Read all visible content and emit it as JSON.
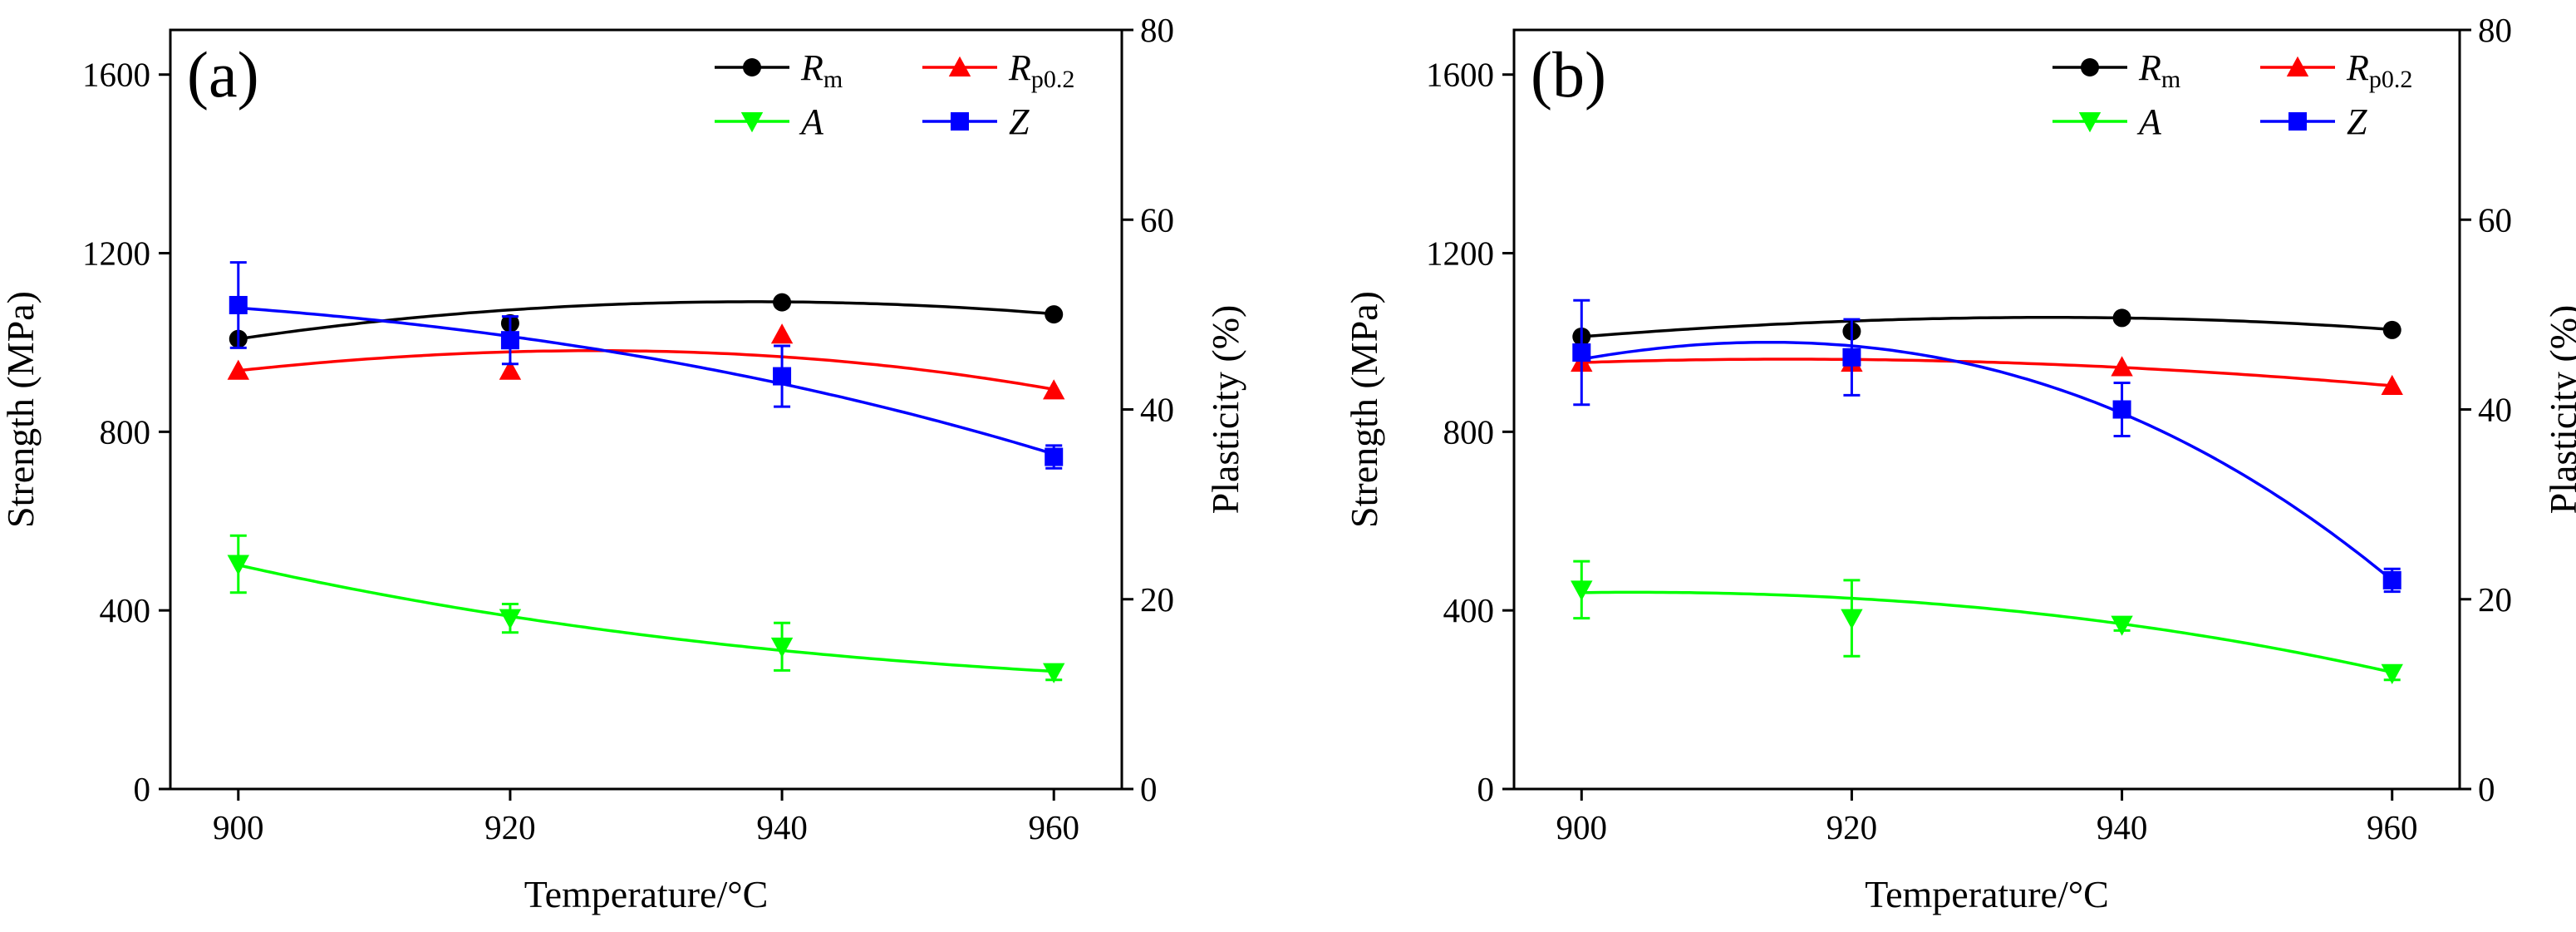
{
  "chart_data": [
    {
      "type": "line",
      "panel_label": "(a)",
      "xlabel": "Temperature/°C",
      "ylabel_left": "Strength (MPa)",
      "ylabel_right": "Plasticity (%)",
      "x": [
        900,
        920,
        940,
        960
      ],
      "x_ticks": [
        "900",
        "920",
        "940",
        "960"
      ],
      "xlim": [
        895,
        965
      ],
      "ylim_left": [
        0,
        1700
      ],
      "ylim_right": [
        0,
        80
      ],
      "y_ticks_left": [
        "0",
        "400",
        "800",
        "1200",
        "1600"
      ],
      "y_ticks_right": [
        "0",
        "20",
        "40",
        "60",
        "80"
      ],
      "legend_position": "top-right",
      "series": [
        {
          "key": "Rm",
          "name": "R",
          "sub": "m",
          "axis": "left",
          "color": "#000000",
          "marker": "circle",
          "values": [
            1008,
            1043,
            1090,
            1063
          ],
          "errors": [
            0,
            0,
            0,
            0
          ],
          "fit": [
            1008,
            1073,
            1091,
            1064
          ]
        },
        {
          "key": "Rp",
          "name": "R",
          "sub": "p0.2",
          "axis": "left",
          "color": "#ff0000",
          "marker": "triangle-up",
          "values": [
            937,
            937,
            1018,
            893
          ],
          "errors": [
            0,
            0,
            0,
            0
          ],
          "fit": [
            937,
            979,
            968,
            895
          ]
        },
        {
          "key": "A",
          "name": "A",
          "sub": "",
          "axis": "right",
          "color": "#00ff00",
          "marker": "triangle-down",
          "values": [
            23.7,
            18,
            15,
            12.3
          ],
          "errors": [
            3,
            1.5,
            2.5,
            0.8
          ],
          "fit": [
            23.6,
            18.2,
            14.6,
            12.4
          ]
        },
        {
          "key": "Z",
          "name": "Z",
          "sub": "",
          "axis": "right",
          "color": "#0000ff",
          "marker": "square",
          "values": [
            51,
            47.3,
            43.5,
            35
          ],
          "errors": [
            4.5,
            2.5,
            3.2,
            1.2
          ],
          "fit": [
            50.7,
            47.7,
            42.7,
            35.3
          ]
        }
      ]
    },
    {
      "type": "line",
      "panel_label": "(b)",
      "xlabel": "Temperature/°C",
      "ylabel_left": "Strength (MPa)",
      "ylabel_right": "Plasticity (%)",
      "x": [
        900,
        920,
        940,
        960
      ],
      "x_ticks": [
        "900",
        "920",
        "940",
        "960"
      ],
      "xlim": [
        895,
        965
      ],
      "ylim_left": [
        0,
        1700
      ],
      "ylim_right": [
        0,
        80
      ],
      "y_ticks_left": [
        "0",
        "400",
        "800",
        "1200",
        "1600"
      ],
      "y_ticks_right": [
        "0",
        "20",
        "40",
        "60",
        "80"
      ],
      "legend_position": "top-right",
      "series": [
        {
          "key": "Rm",
          "name": "R",
          "sub": "m",
          "axis": "left",
          "color": "#000000",
          "marker": "circle",
          "values": [
            1013,
            1025,
            1055,
            1028
          ],
          "errors": [
            0,
            0,
            0,
            0
          ],
          "fit": [
            1013,
            1048,
            1055,
            1029
          ]
        },
        {
          "key": "Rp",
          "name": "R",
          "sub": "p0.2",
          "axis": "left",
          "color": "#ff0000",
          "marker": "triangle-up",
          "values": [
            955,
            955,
            945,
            903
          ],
          "errors": [
            0,
            0,
            0,
            0
          ],
          "fit": [
            955,
            962,
            944,
            903
          ]
        },
        {
          "key": "A",
          "name": "A",
          "sub": "",
          "axis": "right",
          "color": "#00ff00",
          "marker": "triangle-down",
          "values": [
            21,
            18,
            17.3,
            12.2
          ],
          "errors": [
            3,
            4,
            0.6,
            0.7
          ],
          "fit": [
            20.7,
            20.1,
            17.4,
            12.3
          ]
        },
        {
          "key": "Z",
          "name": "Z",
          "sub": "",
          "axis": "right",
          "color": "#0000ff",
          "marker": "square",
          "values": [
            46,
            45.5,
            40,
            22
          ],
          "errors": [
            5.5,
            4,
            2.8,
            1.2
          ],
          "fit": [
            45.3,
            46.7,
            39.6,
            22
          ]
        }
      ]
    }
  ]
}
